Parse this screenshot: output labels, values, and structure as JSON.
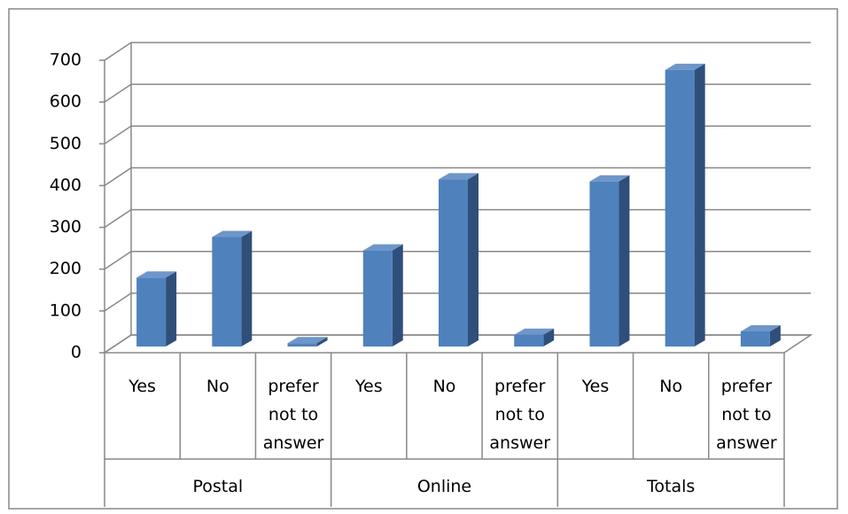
{
  "chart_data": {
    "type": "bar3d",
    "categories": [
      "Yes",
      "No",
      "prefer not to answer",
      "Yes",
      "No",
      "prefer not to answer",
      "Yes",
      "No",
      "prefer not to answer"
    ],
    "groups": [
      "Postal",
      "Online",
      "Totals"
    ],
    "values": [
      165,
      262,
      8,
      230,
      400,
      28,
      395,
      662,
      36
    ],
    "color": "#4f81bd",
    "ylim": [
      0,
      700
    ],
    "yticks": [
      0,
      100,
      200,
      300,
      400,
      500,
      600,
      700
    ],
    "grid": true
  }
}
